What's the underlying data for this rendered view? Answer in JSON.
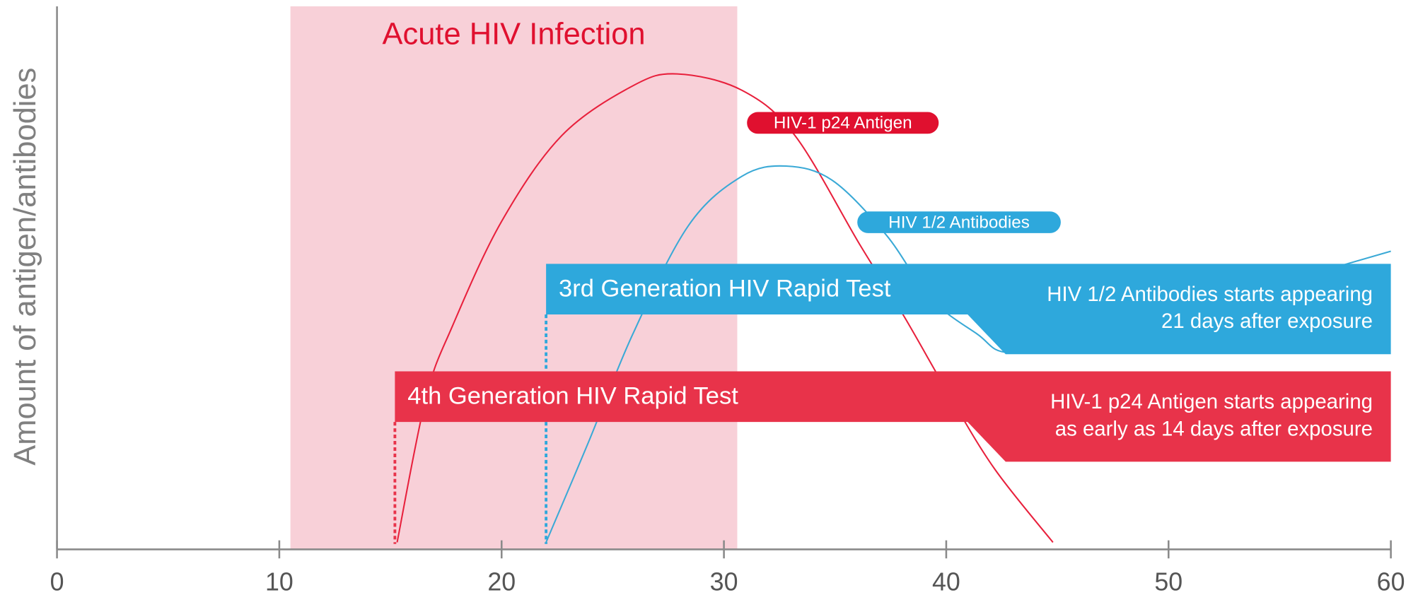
{
  "chart_data": {
    "type": "line",
    "y_axis_label": "Amount of antigen/antibodies",
    "xlim": [
      0,
      60
    ],
    "xticks": [
      0,
      10,
      20,
      30,
      40,
      50,
      60
    ],
    "ylim": [
      0,
      100
    ],
    "shaded_region": {
      "label": "Acute HIV Infection",
      "x": [
        10.5,
        30.6
      ],
      "color": "#f8d0d8"
    },
    "series": [
      {
        "name": "HIV-1 p24 Antigen",
        "color": "#e8203c",
        "x": [
          15.3,
          16.6,
          17.8,
          20.0,
          22.7,
          25.9,
          27.9,
          30.8,
          33.2,
          36.1,
          38.1,
          40.2,
          42.2,
          44.8
        ],
        "values": [
          1.3,
          28,
          41.3,
          60.5,
          76.3,
          85.5,
          87.7,
          84.7,
          76.3,
          56.3,
          43,
          28,
          14.7,
          1.3
        ]
      },
      {
        "name": "HIV 1/2 Antibodies",
        "color": "#3aa9d6",
        "x": [
          22.0,
          23.9,
          25.9,
          28.4,
          30.8,
          32.8,
          34.9,
          37.3,
          39.3,
          41.4,
          42.8,
          46.3,
          50.3,
          54.4,
          60.0
        ],
        "values": [
          1.3,
          19.7,
          39.7,
          59.7,
          68.8,
          70.7,
          68,
          58,
          46.3,
          39.7,
          36.3,
          38.3,
          43,
          48.3,
          55
        ]
      }
    ],
    "tests": [
      {
        "name": "3rd Generation HIV Rapid Test",
        "start": 22.0,
        "color": "#2ea8dc",
        "description": [
          "HIV 1/2 Antibodies starts appearing",
          "21 days after exposure"
        ]
      },
      {
        "name": "4th Generation HIV Rapid Test",
        "start": 15.2,
        "color": "#e8334a",
        "description": [
          "HIV-1 p24 Antigen starts appearing",
          "as early as 14 days after exposure"
        ]
      }
    ]
  }
}
